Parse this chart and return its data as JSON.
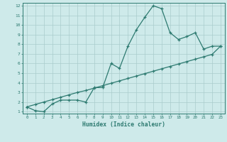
{
  "line1_x": [
    0,
    1,
    2,
    3,
    4,
    5,
    6,
    7,
    8,
    9,
    10,
    11,
    12,
    13,
    14,
    15,
    16,
    17,
    18,
    19,
    20,
    21,
    22,
    23
  ],
  "line1_y": [
    1.5,
    1.1,
    1.0,
    1.8,
    2.2,
    2.2,
    2.2,
    2.0,
    3.5,
    3.5,
    6.0,
    5.5,
    7.8,
    9.5,
    10.8,
    12.0,
    11.7,
    9.2,
    8.5,
    8.8,
    9.2,
    7.5,
    7.8,
    7.8
  ],
  "line2_x": [
    0,
    1,
    2,
    3,
    4,
    5,
    6,
    7,
    8,
    9,
    10,
    11,
    12,
    13,
    14,
    15,
    16,
    17,
    18,
    19,
    20,
    21,
    22,
    23
  ],
  "line2_y": [
    1.5,
    1.75,
    2.0,
    2.25,
    2.5,
    2.75,
    3.0,
    3.2,
    3.45,
    3.7,
    3.95,
    4.2,
    4.45,
    4.7,
    4.95,
    5.2,
    5.45,
    5.7,
    5.95,
    6.2,
    6.45,
    6.7,
    6.95,
    7.8
  ],
  "color": "#2d7a70",
  "bg_color": "#ceeaea",
  "grid_color": "#aacccc",
  "xlabel": "Humidex (Indice chaleur)",
  "xlim": [
    -0.5,
    23.5
  ],
  "ylim": [
    0.8,
    12.3
  ],
  "yticks": [
    1,
    2,
    3,
    4,
    5,
    6,
    7,
    8,
    9,
    10,
    11,
    12
  ],
  "xticks": [
    0,
    1,
    2,
    3,
    4,
    5,
    6,
    7,
    8,
    9,
    10,
    11,
    12,
    13,
    14,
    15,
    16,
    17,
    18,
    19,
    20,
    21,
    22,
    23
  ],
  "marker": "+",
  "markersize": 3,
  "linewidth": 0.9
}
